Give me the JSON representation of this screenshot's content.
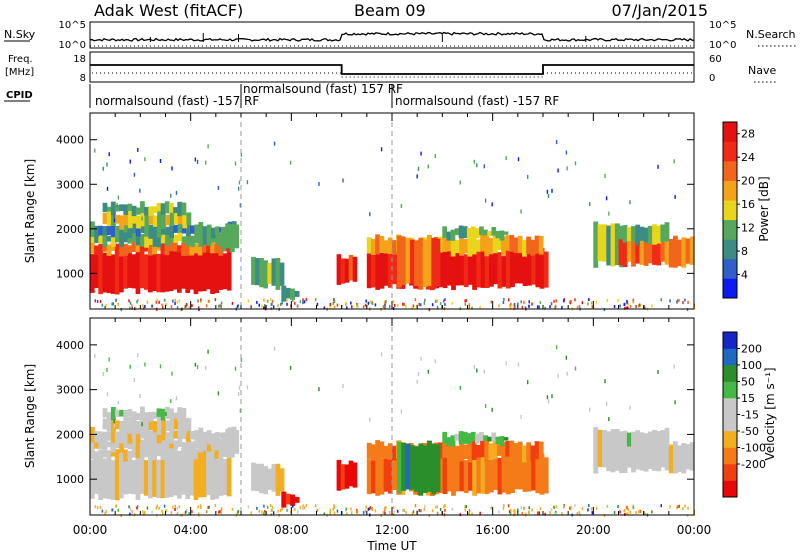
{
  "header": {
    "station": "Adak West (fitACF)",
    "beam": "Beam 09",
    "date": "07/Jan/2015"
  },
  "panels": {
    "nsky": {
      "label": "N.Sky",
      "ticks": [
        "10^5",
        "10^0"
      ],
      "right_label": "N.Search",
      "right_ticks": [
        "10^5",
        "10^0"
      ]
    },
    "freq": {
      "label_line1": "Freq.",
      "label_line2": "[MHz]",
      "ticks": [
        "18",
        "8"
      ],
      "right_label": "Nave",
      "right_ticks": [
        "60",
        "0"
      ]
    },
    "cpid": {
      "label": "CPID",
      "segments": [
        {
          "text": "normalsound (fast) -157 RF",
          "from": 0,
          "to": 6
        },
        {
          "text": "normalsound (fast) 157 RF",
          "from": 6,
          "to": 12
        },
        {
          "text": "normalsound (fast) -157 RF",
          "from": 12,
          "to": 24
        }
      ]
    }
  },
  "colors": {
    "power": [
      "#0b1cf3",
      "#2f5fc9",
      "#3d8c84",
      "#57a85c",
      "#e9d51c",
      "#f5a21b",
      "#f2661c",
      "#ef2a17",
      "#e51010"
    ],
    "velocity": [
      "#e80808",
      "#f04010",
      "#f57a18",
      "#f3ad20",
      "#c8c8c8",
      "#c8c8c8",
      "#46b846",
      "#2a8e2a",
      "#1f6ac0",
      "#1525c8"
    ]
  },
  "chart_data": [
    {
      "type": "heatmap",
      "title": "",
      "quantity": "Power",
      "ylabel": "Slant Range [km]",
      "xlabel": "",
      "xlim": [
        "00:00",
        "24:00"
      ],
      "ylim": [
        200,
        4600
      ],
      "yticks": [
        "1000",
        "2000",
        "3000",
        "4000"
      ],
      "colorbar": {
        "label": "Power [dB]",
        "ticks": [
          "4",
          "8",
          "12",
          "16",
          "20",
          "24",
          "28"
        ],
        "range": [
          0,
          30
        ]
      },
      "grid": "dashed vertical lines at 06:00 and 12:00"
    },
    {
      "type": "heatmap",
      "title": "",
      "quantity": "Velocity",
      "ylabel": "Slant Range [km]",
      "xlabel": "Time UT",
      "xlim": [
        "00:00",
        "24:00"
      ],
      "ylim": [
        200,
        4600
      ],
      "yticks": [
        "1000",
        "2000",
        "3000",
        "4000"
      ],
      "xticks": [
        "00:00",
        "04:00",
        "08:00",
        "12:00",
        "16:00",
        "20:00",
        "00:00"
      ],
      "colorbar": {
        "label": "Velocity [m s⁻¹]",
        "ticks": [
          "-200",
          "-100",
          "-50",
          "-15",
          "15",
          "50",
          "100",
          "200"
        ]
      },
      "grid": "dashed vertical lines at 06:00 and 12:00"
    }
  ]
}
